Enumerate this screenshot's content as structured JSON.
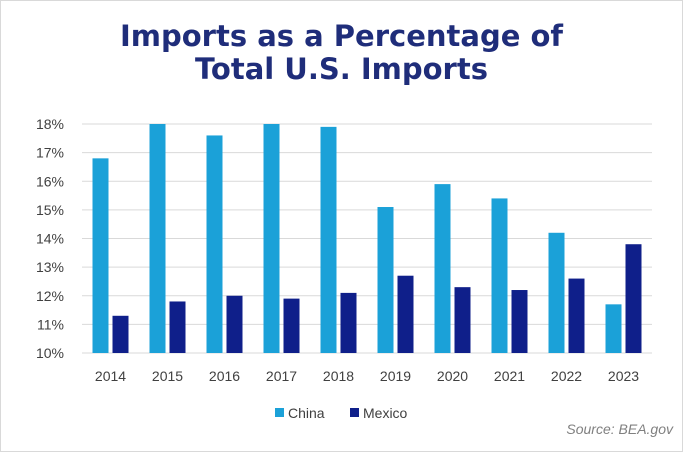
{
  "chart_data": {
    "type": "bar",
    "title_line1": "Imports as a Percentage of",
    "title_line2": "Total U.S. Imports",
    "categories": [
      "2014",
      "2015",
      "2016",
      "2017",
      "2018",
      "2019",
      "2020",
      "2021",
      "2022",
      "2023"
    ],
    "series": [
      {
        "name": "China",
        "color": "#1ba1d8",
        "values": [
          16.8,
          18.0,
          17.6,
          18.0,
          17.9,
          15.1,
          15.9,
          15.4,
          14.2,
          11.7
        ]
      },
      {
        "name": "Mexico",
        "color": "#0f1f8a",
        "values": [
          11.3,
          11.8,
          12.0,
          11.9,
          12.1,
          12.7,
          12.3,
          12.2,
          12.6,
          13.8
        ]
      }
    ],
    "ylim": [
      10,
      18
    ],
    "yticks": [
      "10%",
      "11%",
      "12%",
      "13%",
      "14%",
      "15%",
      "16%",
      "17%",
      "18%"
    ],
    "grid": true,
    "legend_position": "bottom",
    "source": "Source: BEA.gov"
  }
}
